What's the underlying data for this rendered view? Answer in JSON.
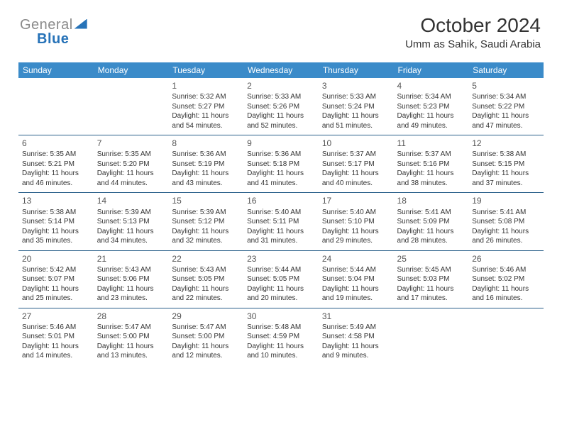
{
  "logo": {
    "part1": "General",
    "part2": "Blue"
  },
  "header": {
    "title": "October 2024",
    "location": "Umm as Sahik, Saudi Arabia"
  },
  "style": {
    "header_bg": "#3b8bc9",
    "header_fg": "#ffffff",
    "row_border": "#2a5f8a",
    "text_color": "#333333",
    "daynum_color": "#555555",
    "page_bg": "#ffffff",
    "logo_blue": "#2773b8",
    "logo_gray": "#8a8a8a",
    "font_size_body": 10,
    "font_size_daynum": 12,
    "font_size_dayhead": 12,
    "font_size_title": 28,
    "font_size_location": 15
  },
  "days": [
    "Sunday",
    "Monday",
    "Tuesday",
    "Wednesday",
    "Thursday",
    "Friday",
    "Saturday"
  ],
  "weeks": [
    [
      null,
      null,
      {
        "n": "1",
        "sr": "5:32 AM",
        "ss": "5:27 PM",
        "dl": "11 hours and 54 minutes."
      },
      {
        "n": "2",
        "sr": "5:33 AM",
        "ss": "5:26 PM",
        "dl": "11 hours and 52 minutes."
      },
      {
        "n": "3",
        "sr": "5:33 AM",
        "ss": "5:24 PM",
        "dl": "11 hours and 51 minutes."
      },
      {
        "n": "4",
        "sr": "5:34 AM",
        "ss": "5:23 PM",
        "dl": "11 hours and 49 minutes."
      },
      {
        "n": "5",
        "sr": "5:34 AM",
        "ss": "5:22 PM",
        "dl": "11 hours and 47 minutes."
      }
    ],
    [
      {
        "n": "6",
        "sr": "5:35 AM",
        "ss": "5:21 PM",
        "dl": "11 hours and 46 minutes."
      },
      {
        "n": "7",
        "sr": "5:35 AM",
        "ss": "5:20 PM",
        "dl": "11 hours and 44 minutes."
      },
      {
        "n": "8",
        "sr": "5:36 AM",
        "ss": "5:19 PM",
        "dl": "11 hours and 43 minutes."
      },
      {
        "n": "9",
        "sr": "5:36 AM",
        "ss": "5:18 PM",
        "dl": "11 hours and 41 minutes."
      },
      {
        "n": "10",
        "sr": "5:37 AM",
        "ss": "5:17 PM",
        "dl": "11 hours and 40 minutes."
      },
      {
        "n": "11",
        "sr": "5:37 AM",
        "ss": "5:16 PM",
        "dl": "11 hours and 38 minutes."
      },
      {
        "n": "12",
        "sr": "5:38 AM",
        "ss": "5:15 PM",
        "dl": "11 hours and 37 minutes."
      }
    ],
    [
      {
        "n": "13",
        "sr": "5:38 AM",
        "ss": "5:14 PM",
        "dl": "11 hours and 35 minutes."
      },
      {
        "n": "14",
        "sr": "5:39 AM",
        "ss": "5:13 PM",
        "dl": "11 hours and 34 minutes."
      },
      {
        "n": "15",
        "sr": "5:39 AM",
        "ss": "5:12 PM",
        "dl": "11 hours and 32 minutes."
      },
      {
        "n": "16",
        "sr": "5:40 AM",
        "ss": "5:11 PM",
        "dl": "11 hours and 31 minutes."
      },
      {
        "n": "17",
        "sr": "5:40 AM",
        "ss": "5:10 PM",
        "dl": "11 hours and 29 minutes."
      },
      {
        "n": "18",
        "sr": "5:41 AM",
        "ss": "5:09 PM",
        "dl": "11 hours and 28 minutes."
      },
      {
        "n": "19",
        "sr": "5:41 AM",
        "ss": "5:08 PM",
        "dl": "11 hours and 26 minutes."
      }
    ],
    [
      {
        "n": "20",
        "sr": "5:42 AM",
        "ss": "5:07 PM",
        "dl": "11 hours and 25 minutes."
      },
      {
        "n": "21",
        "sr": "5:43 AM",
        "ss": "5:06 PM",
        "dl": "11 hours and 23 minutes."
      },
      {
        "n": "22",
        "sr": "5:43 AM",
        "ss": "5:05 PM",
        "dl": "11 hours and 22 minutes."
      },
      {
        "n": "23",
        "sr": "5:44 AM",
        "ss": "5:05 PM",
        "dl": "11 hours and 20 minutes."
      },
      {
        "n": "24",
        "sr": "5:44 AM",
        "ss": "5:04 PM",
        "dl": "11 hours and 19 minutes."
      },
      {
        "n": "25",
        "sr": "5:45 AM",
        "ss": "5:03 PM",
        "dl": "11 hours and 17 minutes."
      },
      {
        "n": "26",
        "sr": "5:46 AM",
        "ss": "5:02 PM",
        "dl": "11 hours and 16 minutes."
      }
    ],
    [
      {
        "n": "27",
        "sr": "5:46 AM",
        "ss": "5:01 PM",
        "dl": "11 hours and 14 minutes."
      },
      {
        "n": "28",
        "sr": "5:47 AM",
        "ss": "5:00 PM",
        "dl": "11 hours and 13 minutes."
      },
      {
        "n": "29",
        "sr": "5:47 AM",
        "ss": "5:00 PM",
        "dl": "11 hours and 12 minutes."
      },
      {
        "n": "30",
        "sr": "5:48 AM",
        "ss": "4:59 PM",
        "dl": "11 hours and 10 minutes."
      },
      {
        "n": "31",
        "sr": "5:49 AM",
        "ss": "4:58 PM",
        "dl": "11 hours and 9 minutes."
      },
      null,
      null
    ]
  ],
  "labels": {
    "sunrise": "Sunrise: ",
    "sunset": "Sunset: ",
    "daylight": "Daylight: "
  }
}
